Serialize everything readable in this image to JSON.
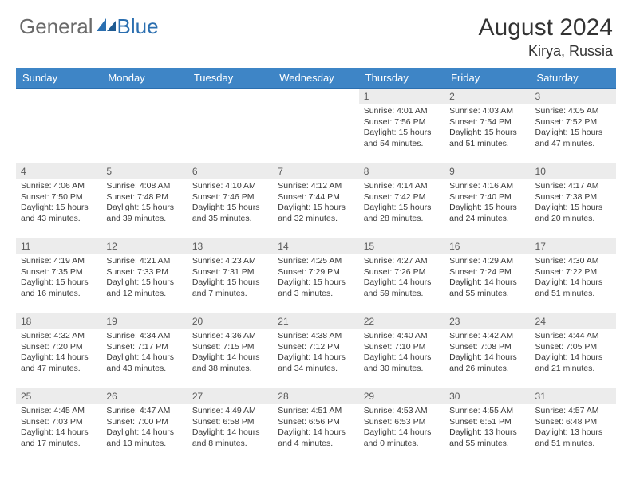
{
  "logo": {
    "text1": "General",
    "text2": "Blue"
  },
  "title": "August 2024",
  "location": "Kirya, Russia",
  "colors": {
    "header_bg": "#3e85c6",
    "header_text": "#ffffff",
    "border": "#2b6fb0",
    "daynum_bg": "#ececec",
    "daynum_text": "#5a5a5a",
    "body_text": "#3a3a3a",
    "logo_gray": "#6a6a6a",
    "logo_blue": "#2b6fb0"
  },
  "day_names": [
    "Sunday",
    "Monday",
    "Tuesday",
    "Wednesday",
    "Thursday",
    "Friday",
    "Saturday"
  ],
  "weeks": [
    [
      {
        "n": "",
        "t": ""
      },
      {
        "n": "",
        "t": ""
      },
      {
        "n": "",
        "t": ""
      },
      {
        "n": "",
        "t": ""
      },
      {
        "n": "1",
        "t": "Sunrise: 4:01 AM\nSunset: 7:56 PM\nDaylight: 15 hours and 54 minutes."
      },
      {
        "n": "2",
        "t": "Sunrise: 4:03 AM\nSunset: 7:54 PM\nDaylight: 15 hours and 51 minutes."
      },
      {
        "n": "3",
        "t": "Sunrise: 4:05 AM\nSunset: 7:52 PM\nDaylight: 15 hours and 47 minutes."
      }
    ],
    [
      {
        "n": "4",
        "t": "Sunrise: 4:06 AM\nSunset: 7:50 PM\nDaylight: 15 hours and 43 minutes."
      },
      {
        "n": "5",
        "t": "Sunrise: 4:08 AM\nSunset: 7:48 PM\nDaylight: 15 hours and 39 minutes."
      },
      {
        "n": "6",
        "t": "Sunrise: 4:10 AM\nSunset: 7:46 PM\nDaylight: 15 hours and 35 minutes."
      },
      {
        "n": "7",
        "t": "Sunrise: 4:12 AM\nSunset: 7:44 PM\nDaylight: 15 hours and 32 minutes."
      },
      {
        "n": "8",
        "t": "Sunrise: 4:14 AM\nSunset: 7:42 PM\nDaylight: 15 hours and 28 minutes."
      },
      {
        "n": "9",
        "t": "Sunrise: 4:16 AM\nSunset: 7:40 PM\nDaylight: 15 hours and 24 minutes."
      },
      {
        "n": "10",
        "t": "Sunrise: 4:17 AM\nSunset: 7:38 PM\nDaylight: 15 hours and 20 minutes."
      }
    ],
    [
      {
        "n": "11",
        "t": "Sunrise: 4:19 AM\nSunset: 7:35 PM\nDaylight: 15 hours and 16 minutes."
      },
      {
        "n": "12",
        "t": "Sunrise: 4:21 AM\nSunset: 7:33 PM\nDaylight: 15 hours and 12 minutes."
      },
      {
        "n": "13",
        "t": "Sunrise: 4:23 AM\nSunset: 7:31 PM\nDaylight: 15 hours and 7 minutes."
      },
      {
        "n": "14",
        "t": "Sunrise: 4:25 AM\nSunset: 7:29 PM\nDaylight: 15 hours and 3 minutes."
      },
      {
        "n": "15",
        "t": "Sunrise: 4:27 AM\nSunset: 7:26 PM\nDaylight: 14 hours and 59 minutes."
      },
      {
        "n": "16",
        "t": "Sunrise: 4:29 AM\nSunset: 7:24 PM\nDaylight: 14 hours and 55 minutes."
      },
      {
        "n": "17",
        "t": "Sunrise: 4:30 AM\nSunset: 7:22 PM\nDaylight: 14 hours and 51 minutes."
      }
    ],
    [
      {
        "n": "18",
        "t": "Sunrise: 4:32 AM\nSunset: 7:20 PM\nDaylight: 14 hours and 47 minutes."
      },
      {
        "n": "19",
        "t": "Sunrise: 4:34 AM\nSunset: 7:17 PM\nDaylight: 14 hours and 43 minutes."
      },
      {
        "n": "20",
        "t": "Sunrise: 4:36 AM\nSunset: 7:15 PM\nDaylight: 14 hours and 38 minutes."
      },
      {
        "n": "21",
        "t": "Sunrise: 4:38 AM\nSunset: 7:12 PM\nDaylight: 14 hours and 34 minutes."
      },
      {
        "n": "22",
        "t": "Sunrise: 4:40 AM\nSunset: 7:10 PM\nDaylight: 14 hours and 30 minutes."
      },
      {
        "n": "23",
        "t": "Sunrise: 4:42 AM\nSunset: 7:08 PM\nDaylight: 14 hours and 26 minutes."
      },
      {
        "n": "24",
        "t": "Sunrise: 4:44 AM\nSunset: 7:05 PM\nDaylight: 14 hours and 21 minutes."
      }
    ],
    [
      {
        "n": "25",
        "t": "Sunrise: 4:45 AM\nSunset: 7:03 PM\nDaylight: 14 hours and 17 minutes."
      },
      {
        "n": "26",
        "t": "Sunrise: 4:47 AM\nSunset: 7:00 PM\nDaylight: 14 hours and 13 minutes."
      },
      {
        "n": "27",
        "t": "Sunrise: 4:49 AM\nSunset: 6:58 PM\nDaylight: 14 hours and 8 minutes."
      },
      {
        "n": "28",
        "t": "Sunrise: 4:51 AM\nSunset: 6:56 PM\nDaylight: 14 hours and 4 minutes."
      },
      {
        "n": "29",
        "t": "Sunrise: 4:53 AM\nSunset: 6:53 PM\nDaylight: 14 hours and 0 minutes."
      },
      {
        "n": "30",
        "t": "Sunrise: 4:55 AM\nSunset: 6:51 PM\nDaylight: 13 hours and 55 minutes."
      },
      {
        "n": "31",
        "t": "Sunrise: 4:57 AM\nSunset: 6:48 PM\nDaylight: 13 hours and 51 minutes."
      }
    ]
  ]
}
